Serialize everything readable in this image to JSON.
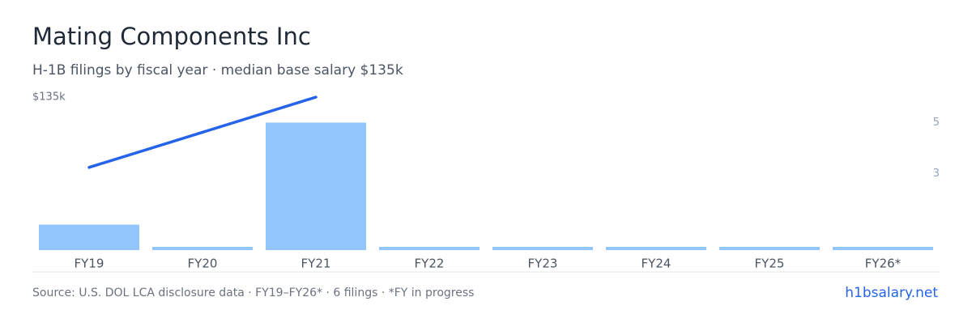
{
  "chart_data": {
    "type": "bar",
    "title": "Mating Components Inc",
    "subtitle": "H-1B filings by fiscal year · median base salary $135k",
    "categories": [
      "FY19",
      "FY20",
      "FY21",
      "FY22",
      "FY23",
      "FY24",
      "FY25",
      "FY26*"
    ],
    "series": [
      {
        "type": "bar",
        "axis": "y2",
        "color": "#93c5fd",
        "values": [
          1,
          0,
          5,
          0,
          0,
          0,
          0,
          0
        ]
      },
      {
        "type": "line",
        "axis": "y",
        "color": "#2563eb",
        "values": [
          73000,
          104000,
          135000,
          null,
          null,
          null,
          null,
          null
        ]
      }
    ],
    "ylim": [
      0,
      135000
    ],
    "yticks": [
      {
        "value": 135000,
        "label": "$135k"
      }
    ],
    "y2lim": [
      0,
      6
    ],
    "y2ticks": [
      3,
      5
    ],
    "footer": {
      "source": "Source: U.S. DOL LCA disclosure data · FY19–FY26* · 6 filings · *FY in progress",
      "site": "h1bsalary.net"
    }
  }
}
